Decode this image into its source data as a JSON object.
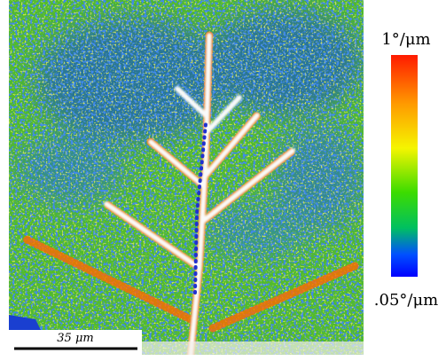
{
  "colorbar": {
    "max_label": "1°/μm",
    "min_label": ".05°/μm"
  },
  "scale_bar": {
    "label": "35 μm"
  }
}
